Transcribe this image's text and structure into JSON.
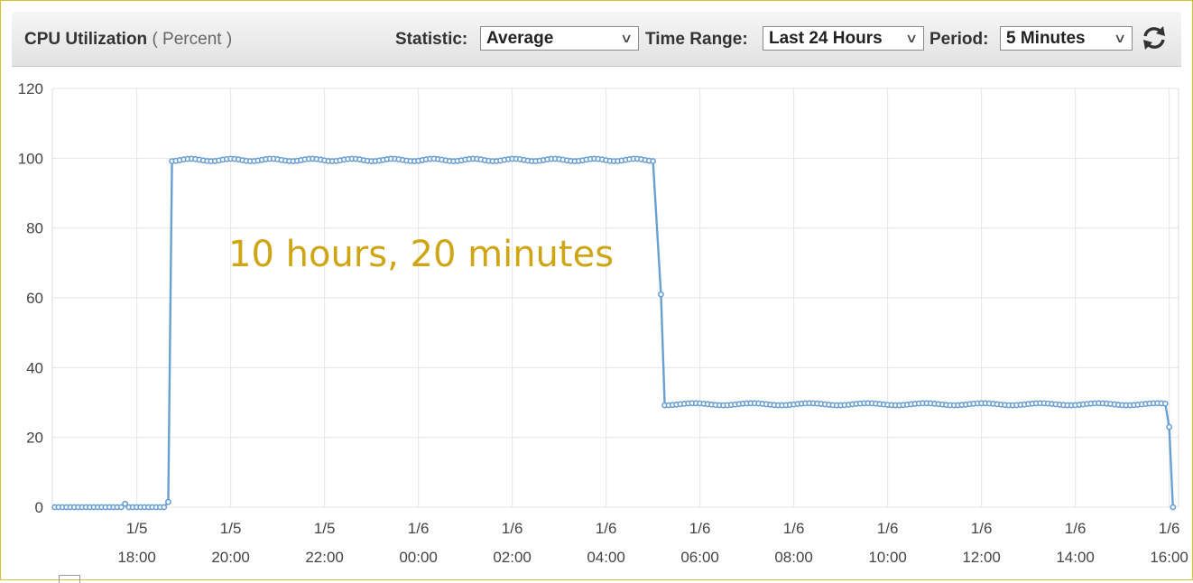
{
  "toolbar": {
    "title": "CPU Utilization",
    "unit": "( Percent )",
    "statistic_label": "Statistic:",
    "statistic_value": "Average",
    "time_range_label": "Time Range:",
    "time_range_value": "Last 24 Hours",
    "period_label": "Period:",
    "period_value": "5 Minutes",
    "refresh_icon": "refresh-icon"
  },
  "annotation": "10 hours, 20 minutes",
  "colors": {
    "series": "#6a9fd3",
    "grid": "#e6e6e6",
    "annotation": "#cfa513",
    "frame": "#d9bf2e"
  },
  "chart_data": {
    "type": "line",
    "title": "CPU Utilization",
    "ylabel": "Percent",
    "ylim": [
      0,
      120
    ],
    "yticks": [
      0,
      20,
      40,
      60,
      80,
      100,
      120
    ],
    "grid": true,
    "x_unit": "hour",
    "xlim": [
      16.2,
      16.05
    ],
    "xticks": [
      {
        "date": "1/5",
        "time": "18:00",
        "x": 18
      },
      {
        "date": "1/5",
        "time": "20:00",
        "x": 20
      },
      {
        "date": "1/5",
        "time": "22:00",
        "x": 22
      },
      {
        "date": "1/6",
        "time": "00:00",
        "x": 24
      },
      {
        "date": "1/6",
        "time": "02:00",
        "x": 26
      },
      {
        "date": "1/6",
        "time": "04:00",
        "x": 28
      },
      {
        "date": "1/6",
        "time": "06:00",
        "x": 30
      },
      {
        "date": "1/6",
        "time": "08:00",
        "x": 32
      },
      {
        "date": "1/6",
        "time": "10:00",
        "x": 34
      },
      {
        "date": "1/6",
        "time": "12:00",
        "x": 36
      },
      {
        "date": "1/6",
        "time": "14:00",
        "x": 38
      },
      {
        "date": "1/6",
        "time": "16:00",
        "x": 40
      }
    ],
    "series": [
      {
        "name": "",
        "segments": [
          {
            "x_start": 16.25,
            "x_end": 17.67,
            "value": 0
          },
          {
            "x": 17.75,
            "value": 1
          },
          {
            "x_start": 17.83,
            "x_end": 18.58,
            "value": 0
          },
          {
            "x": 18.67,
            "value": 1.5
          },
          {
            "x_start": 18.75,
            "x_end": 29.08,
            "value": 99.5
          },
          {
            "x": 29.17,
            "value": 61
          },
          {
            "x_start": 29.25,
            "x_end": 39.92,
            "value": 29.5
          },
          {
            "x": 40.0,
            "value": 23
          },
          {
            "x": 40.08,
            "value": 0
          }
        ]
      }
    ]
  }
}
